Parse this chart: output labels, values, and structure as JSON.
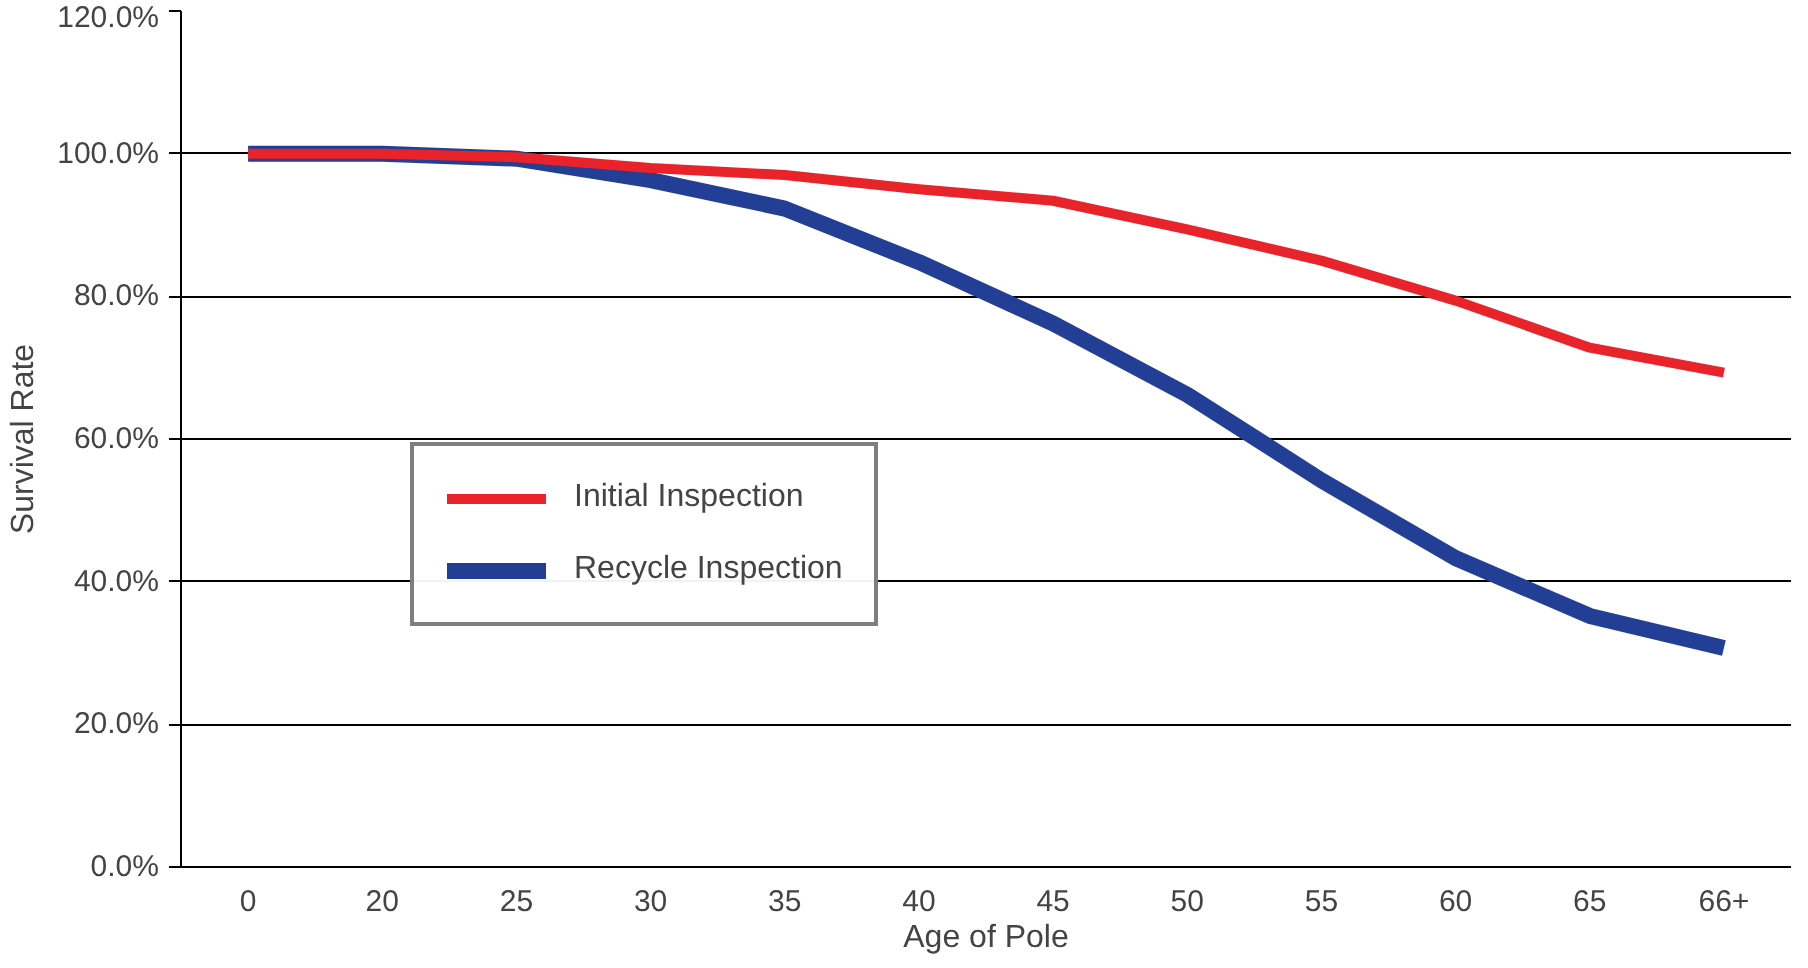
{
  "chart_data": {
    "type": "line",
    "xlabel": "Age of Pole",
    "ylabel": "Survival Rate",
    "categories": [
      "0",
      "20",
      "25",
      "30",
      "35",
      "40",
      "45",
      "50",
      "55",
      "60",
      "65",
      "66+"
    ],
    "series": [
      {
        "name": "Initial Inspection",
        "color": "#e8232a",
        "values": [
          100,
          100,
          99.5,
          98,
          97,
          95,
          93.4,
          89.4,
          85,
          79.4,
          72.8,
          69.3
        ]
      },
      {
        "name": "Recycle Inspection",
        "color": "#233f95",
        "values": [
          100,
          100,
          99.3,
          96.3,
          92.3,
          84.8,
          76.2,
          66.2,
          54.2,
          43.3,
          35.2,
          30.7
        ]
      }
    ],
    "ylim": [
      0,
      120
    ],
    "yticks": [
      {
        "value": 0,
        "label": "0.0%"
      },
      {
        "value": 20,
        "label": "20.0%"
      },
      {
        "value": 40,
        "label": "40.0%"
      },
      {
        "value": 60,
        "label": "60.0%"
      },
      {
        "value": 80,
        "label": "80.0%"
      },
      {
        "value": 100,
        "label": "100.0%"
      },
      {
        "value": 120,
        "label": "120.0%"
      }
    ],
    "grid": "y",
    "legend": "left",
    "marker": "none",
    "line_style": "solid"
  }
}
